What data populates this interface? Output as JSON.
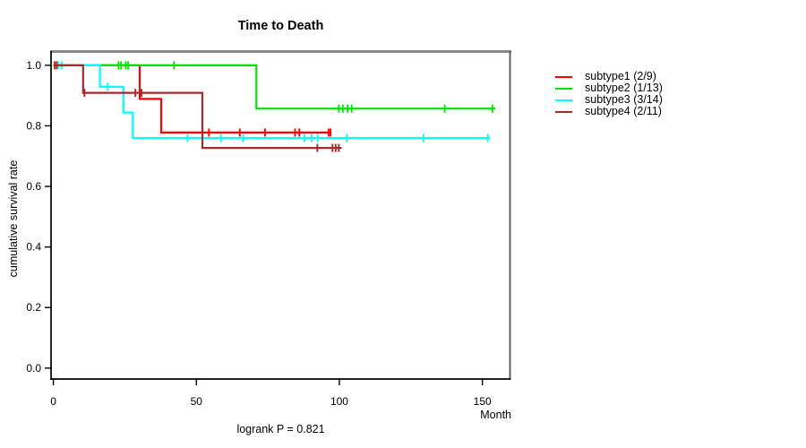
{
  "chart_data": {
    "type": "line",
    "variant": "kaplan-meier-survival",
    "title": "Time to Death",
    "xlabel": "Month",
    "ylabel": "cumulative survival rate",
    "annotation": "logrank P = 0.821",
    "grid": false,
    "legend_position": "right-outside",
    "x_axis": {
      "min": -0.8,
      "max": 159.5,
      "tick_values": [
        0,
        50,
        100,
        150
      ],
      "tick_labels": [
        "0",
        "50",
        "100",
        "150"
      ]
    },
    "y_axis": {
      "min": -0.036,
      "max": 1.047,
      "tick_values": [
        0.0,
        0.2,
        0.4,
        0.6,
        0.8,
        1.0
      ],
      "tick_labels": [
        "0.0",
        "0.2",
        "0.4",
        "0.6",
        "0.8",
        "1.0"
      ]
    },
    "series": [
      {
        "name": "subtype1 (2/9)",
        "color": "#FF0000",
        "steps": [
          [
            0,
            1.0
          ],
          [
            30.2,
            0.889
          ],
          [
            37.7,
            0.778
          ],
          [
            97.2,
            0.778
          ]
        ],
        "censors": [
          [
            1.2,
            1.0
          ],
          [
            54.4,
            0.778
          ],
          [
            65.2,
            0.778
          ],
          [
            74.0,
            0.778
          ],
          [
            84.5,
            0.778
          ],
          [
            86.0,
            0.778
          ],
          [
            96.2,
            0.778
          ],
          [
            96.9,
            0.778
          ]
        ]
      },
      {
        "name": "subtype2 (1/13)",
        "color": "#00E400",
        "steps": [
          [
            0,
            1.0
          ],
          [
            71.0,
            0.857
          ],
          [
            154.5,
            0.857
          ]
        ],
        "censors": [
          [
            22.8,
            1.0
          ],
          [
            23.7,
            1.0
          ],
          [
            25.3,
            1.0
          ],
          [
            26.2,
            1.0
          ],
          [
            42.2,
            1.0
          ],
          [
            99.8,
            0.857
          ],
          [
            101.2,
            0.857
          ],
          [
            102.9,
            0.857
          ],
          [
            104.3,
            0.857
          ],
          [
            136.8,
            0.857
          ],
          [
            153.5,
            0.857
          ]
        ]
      },
      {
        "name": "subtype3 (3/14)",
        "color": "#00FFFF",
        "steps": [
          [
            0,
            1.0
          ],
          [
            16.3,
            0.929
          ],
          [
            24.5,
            0.844
          ],
          [
            27.8,
            0.76
          ],
          [
            152.7,
            0.76
          ]
        ],
        "censors": [
          [
            1.7,
            1.0
          ],
          [
            3.0,
            1.0
          ],
          [
            19.0,
            0.929
          ],
          [
            46.9,
            0.76
          ],
          [
            58.6,
            0.76
          ],
          [
            66.4,
            0.76
          ],
          [
            87.8,
            0.76
          ],
          [
            90.3,
            0.76
          ],
          [
            92.4,
            0.76
          ],
          [
            102.6,
            0.76
          ],
          [
            129.4,
            0.76
          ],
          [
            151.9,
            0.76
          ]
        ]
      },
      {
        "name": "subtype4 (2/11)",
        "color": "#A52A2A",
        "steps": [
          [
            0,
            1.0
          ],
          [
            10.4,
            0.909
          ],
          [
            52.1,
            0.727
          ],
          [
            100.8,
            0.727
          ]
        ],
        "censors": [
          [
            0.5,
            1.0
          ],
          [
            10.9,
            0.909
          ],
          [
            28.7,
            0.909
          ],
          [
            30.8,
            0.909
          ],
          [
            92.3,
            0.727
          ],
          [
            97.6,
            0.727
          ],
          [
            98.7,
            0.727
          ],
          [
            99.8,
            0.727
          ]
        ]
      }
    ]
  }
}
